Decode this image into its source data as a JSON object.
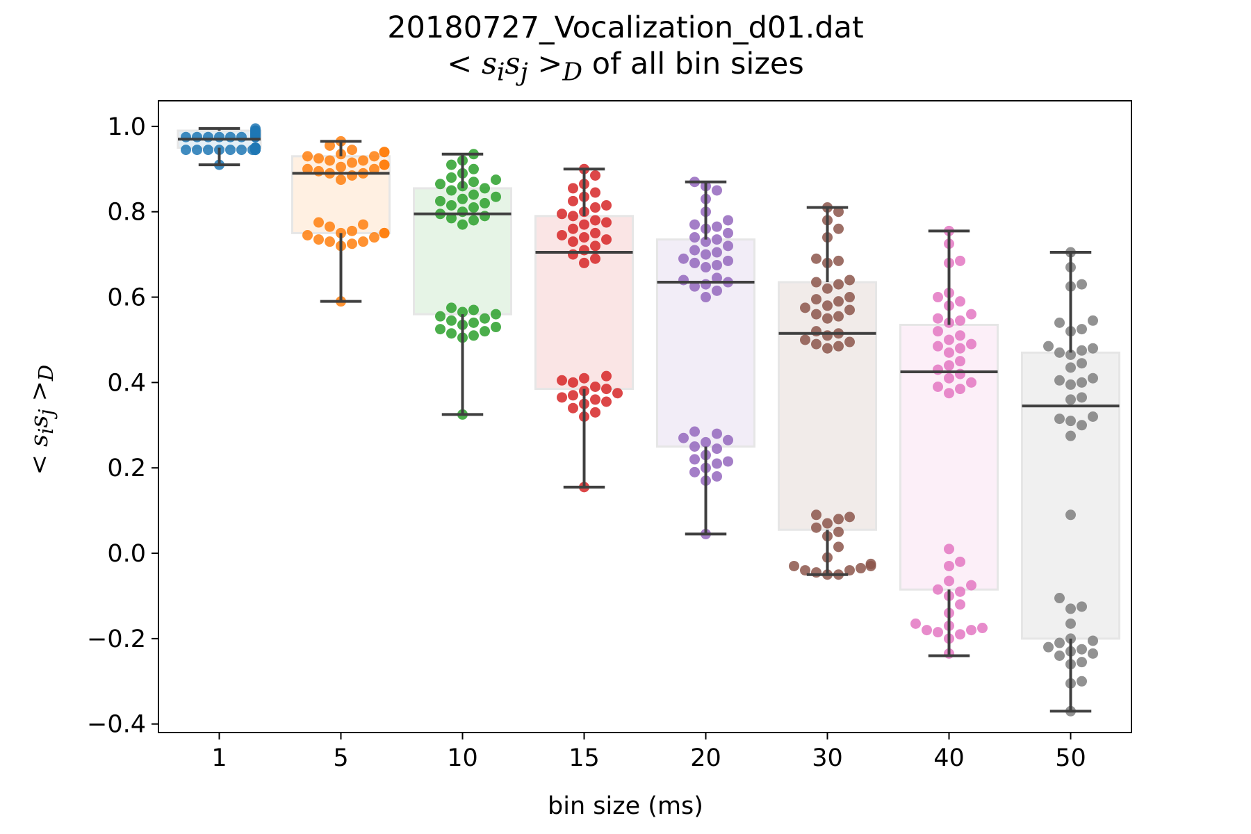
{
  "title": {
    "line1": "20180727_Vocalization_d01.dat",
    "line2_suffix": "of all bin sizes"
  },
  "math": {
    "lt": "<",
    "gt": ">",
    "s": "s",
    "i": "i",
    "j": "j",
    "D": "D"
  },
  "colors": {
    "series": [
      "#1f77b4",
      "#ff7f0e",
      "#2ca02c",
      "#d62728",
      "#9467bd",
      "#8c564b",
      "#e377c2",
      "#7f7f7f"
    ],
    "box_edge": "#e6e6e6",
    "whisker": "#3f3f3f",
    "axis": "#000000"
  },
  "chart_data": {
    "type": "box+swarm",
    "title": "20180727_Vocalization_d01.dat  <s_i s_j>_D of all bin sizes",
    "xlabel": "bin size (ms)",
    "ylabel": "<s_i s_j>_D",
    "ylim": [
      -0.42,
      1.06
    ],
    "yticks": [
      -0.4,
      -0.2,
      0.0,
      0.2,
      0.4,
      0.6,
      0.8,
      1.0
    ],
    "ytick_labels": [
      "−0.4",
      "−0.2",
      "0.0",
      "0.2",
      "0.4",
      "0.6",
      "0.8",
      "1.0"
    ],
    "grid": false,
    "legend": "none",
    "categories": [
      "1",
      "5",
      "10",
      "15",
      "20",
      "30",
      "40",
      "50"
    ],
    "boxes": [
      {
        "category": "1",
        "whislo": 0.91,
        "q1": 0.95,
        "med": 0.97,
        "q3": 0.99,
        "whishi": 0.995
      },
      {
        "category": "5",
        "whislo": 0.59,
        "q1": 0.75,
        "med": 0.89,
        "q3": 0.93,
        "whishi": 0.965
      },
      {
        "category": "10",
        "whislo": 0.325,
        "q1": 0.56,
        "med": 0.795,
        "q3": 0.855,
        "whishi": 0.935
      },
      {
        "category": "15",
        "whislo": 0.155,
        "q1": 0.385,
        "med": 0.705,
        "q3": 0.79,
        "whishi": 0.9
      },
      {
        "category": "20",
        "whislo": 0.045,
        "q1": 0.25,
        "med": 0.635,
        "q3": 0.735,
        "whishi": 0.87
      },
      {
        "category": "30",
        "whislo": -0.05,
        "q1": 0.055,
        "med": 0.515,
        "q3": 0.635,
        "whishi": 0.81
      },
      {
        "category": "40",
        "whislo": -0.24,
        "q1": -0.085,
        "med": 0.425,
        "q3": 0.535,
        "whishi": 0.755
      },
      {
        "category": "50",
        "whislo": -0.37,
        "q1": -0.2,
        "med": 0.345,
        "q3": 0.47,
        "whishi": 0.705
      }
    ],
    "points": [
      [
        0.99,
        0.985,
        0.98,
        0.98,
        0.975,
        0.975,
        0.975,
        0.975,
        0.975,
        0.975,
        0.975,
        0.975,
        0.98,
        0.985,
        0.99,
        0.995,
        0.95,
        0.95,
        0.945,
        0.945,
        0.945,
        0.945,
        0.945,
        0.945,
        0.945,
        0.945,
        0.945,
        0.95,
        0.95,
        0.91
      ],
      [
        0.965,
        0.955,
        0.945,
        0.94,
        0.935,
        0.93,
        0.925,
        0.92,
        0.915,
        0.91,
        0.905,
        0.9,
        0.895,
        0.89,
        0.885,
        0.875,
        0.94,
        0.93,
        0.92,
        0.91,
        0.9,
        0.89,
        0.775,
        0.77,
        0.765,
        0.755,
        0.75,
        0.745,
        0.74,
        0.735,
        0.73,
        0.725,
        0.72,
        0.75,
        0.75,
        0.73,
        0.59
      ],
      [
        0.935,
        0.92,
        0.91,
        0.9,
        0.89,
        0.88,
        0.875,
        0.87,
        0.865,
        0.86,
        0.855,
        0.85,
        0.84,
        0.835,
        0.83,
        0.825,
        0.82,
        0.815,
        0.81,
        0.8,
        0.795,
        0.79,
        0.785,
        0.78,
        0.77,
        0.575,
        0.57,
        0.565,
        0.56,
        0.555,
        0.55,
        0.545,
        0.54,
        0.535,
        0.53,
        0.525,
        0.52,
        0.515,
        0.51,
        0.505,
        0.325
      ],
      [
        0.9,
        0.885,
        0.865,
        0.855,
        0.845,
        0.835,
        0.825,
        0.815,
        0.81,
        0.8,
        0.795,
        0.79,
        0.78,
        0.775,
        0.77,
        0.76,
        0.75,
        0.745,
        0.74,
        0.735,
        0.73,
        0.72,
        0.71,
        0.7,
        0.69,
        0.68,
        0.415,
        0.41,
        0.405,
        0.4,
        0.39,
        0.385,
        0.38,
        0.375,
        0.37,
        0.365,
        0.36,
        0.355,
        0.35,
        0.34,
        0.33,
        0.32,
        0.155
      ],
      [
        0.87,
        0.86,
        0.85,
        0.83,
        0.8,
        0.78,
        0.77,
        0.765,
        0.76,
        0.75,
        0.74,
        0.735,
        0.73,
        0.72,
        0.71,
        0.705,
        0.7,
        0.69,
        0.685,
        0.68,
        0.675,
        0.67,
        0.645,
        0.64,
        0.635,
        0.63,
        0.625,
        0.615,
        0.6,
        0.285,
        0.28,
        0.27,
        0.265,
        0.26,
        0.25,
        0.245,
        0.23,
        0.22,
        0.215,
        0.21,
        0.2,
        0.19,
        0.18,
        0.17,
        0.045
      ],
      [
        0.81,
        0.8,
        0.78,
        0.76,
        0.74,
        0.69,
        0.685,
        0.68,
        0.64,
        0.635,
        0.63,
        0.62,
        0.6,
        0.595,
        0.59,
        0.58,
        0.575,
        0.57,
        0.56,
        0.555,
        0.55,
        0.52,
        0.515,
        0.51,
        0.5,
        0.495,
        0.49,
        0.485,
        0.48,
        0.09,
        0.085,
        0.08,
        0.07,
        0.06,
        0.05,
        0.04,
        0.015,
        -0.01,
        -0.025,
        -0.03,
        -0.03,
        -0.035,
        -0.04,
        -0.04,
        -0.045,
        -0.05,
        -0.05
      ],
      [
        0.755,
        0.725,
        0.685,
        0.68,
        0.61,
        0.6,
        0.59,
        0.58,
        0.56,
        0.55,
        0.545,
        0.54,
        0.52,
        0.51,
        0.5,
        0.49,
        0.485,
        0.48,
        0.47,
        0.45,
        0.44,
        0.43,
        0.42,
        0.41,
        0.4,
        0.39,
        0.385,
        0.375,
        0.01,
        -0.02,
        -0.03,
        -0.065,
        -0.075,
        -0.085,
        -0.09,
        -0.1,
        -0.12,
        -0.14,
        -0.165,
        -0.17,
        -0.175,
        -0.18,
        -0.18,
        -0.185,
        -0.19,
        -0.2,
        -0.235
      ],
      [
        0.705,
        0.67,
        0.63,
        0.625,
        0.545,
        0.54,
        0.525,
        0.52,
        0.485,
        0.48,
        0.475,
        0.47,
        0.465,
        0.445,
        0.435,
        0.41,
        0.405,
        0.4,
        0.395,
        0.365,
        0.36,
        0.32,
        0.315,
        0.31,
        0.3,
        0.275,
        0.09,
        -0.105,
        -0.125,
        -0.13,
        -0.165,
        -0.2,
        -0.205,
        -0.21,
        -0.22,
        -0.225,
        -0.23,
        -0.235,
        -0.24,
        -0.255,
        -0.26,
        -0.3,
        -0.305,
        -0.37
      ]
    ]
  }
}
